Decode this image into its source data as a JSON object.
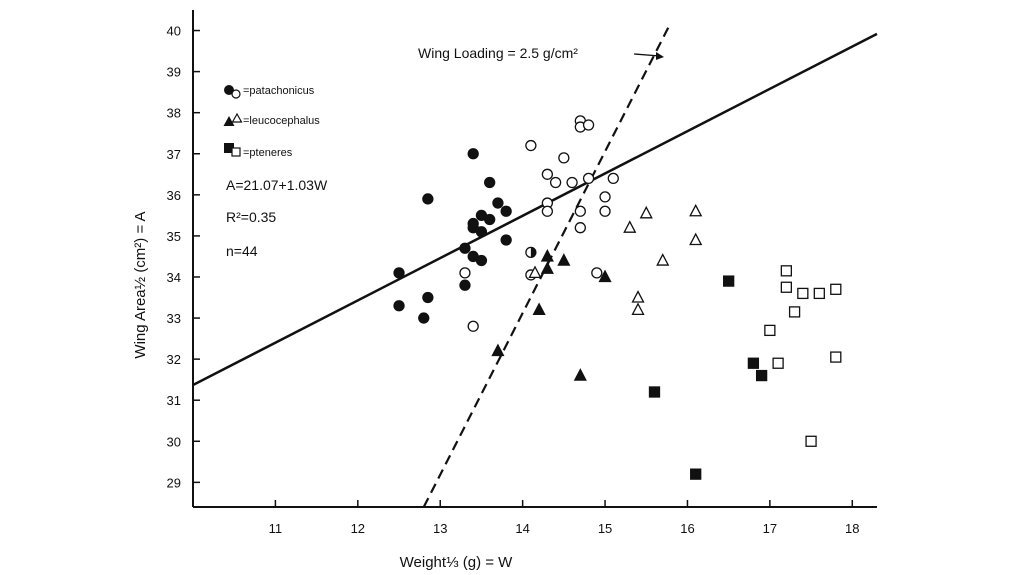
{
  "chart_data": {
    "type": "scatter",
    "xlabel": "Weight⅓ (g) = W",
    "ylabel": "Wing Area½ (cm²) = A",
    "xlim": [
      10,
      18.3
    ],
    "ylim": [
      28.4,
      40.5
    ],
    "xticks": [
      "11",
      "12",
      "13",
      "14",
      "15",
      "16",
      "17",
      "18"
    ],
    "yticks": [
      "29",
      "30",
      "31",
      "32",
      "33",
      "34",
      "35",
      "36",
      "37",
      "38",
      "39",
      "40"
    ],
    "legend": [
      {
        "key": "patachonicus",
        "symbol": "circle",
        "label": "=patachonicus"
      },
      {
        "key": "leucocephalus",
        "symbol": "triangle",
        "label": "=leucocephalus"
      },
      {
        "key": "pteneres",
        "symbol": "square",
        "label": "=pteneres"
      }
    ],
    "stats": {
      "equation": "A=21.07+1.03W",
      "r2": "R²=0.35",
      "n": "n=44"
    },
    "regression_line": {
      "intercept": 21.07,
      "slope": 1.03
    },
    "wing_loading_line": {
      "label": "Wing Loading = 2.5 g/cm²",
      "points": [
        [
          12.8,
          28.4
        ],
        [
          15.8,
          40.2
        ]
      ]
    },
    "series": [
      {
        "name": "patachonicus",
        "shape": "circle",
        "filled": [
          [
            12.5,
            34.1
          ],
          [
            12.5,
            33.3
          ],
          [
            12.8,
            33.0
          ],
          [
            12.85,
            33.5
          ],
          [
            12.85,
            35.9
          ],
          [
            13.3,
            34.7
          ],
          [
            13.3,
            33.8
          ],
          [
            13.4,
            34.5
          ],
          [
            13.4,
            35.2
          ],
          [
            13.4,
            35.3
          ],
          [
            13.4,
            37.0
          ],
          [
            13.5,
            35.1
          ],
          [
            13.5,
            35.5
          ],
          [
            13.5,
            34.4
          ],
          [
            13.6,
            35.4
          ],
          [
            13.6,
            36.3
          ],
          [
            13.7,
            35.8
          ],
          [
            13.8,
            35.6
          ],
          [
            13.8,
            34.9
          ]
        ],
        "open": [
          [
            13.3,
            34.1
          ],
          [
            13.4,
            32.8
          ],
          [
            14.1,
            37.2
          ],
          [
            14.3,
            36.5
          ],
          [
            14.3,
            35.8
          ],
          [
            14.3,
            35.6
          ],
          [
            14.4,
            36.3
          ],
          [
            14.5,
            36.9
          ],
          [
            14.6,
            36.3
          ],
          [
            14.7,
            37.8
          ],
          [
            14.7,
            37.65
          ],
          [
            14.7,
            35.2
          ],
          [
            14.7,
            35.6
          ],
          [
            14.8,
            37.7
          ],
          [
            14.8,
            36.4
          ],
          [
            14.9,
            34.1
          ],
          [
            15.0,
            35.6
          ],
          [
            15.0,
            35.95
          ],
          [
            15.1,
            36.4
          ],
          [
            14.1,
            34.05
          ]
        ],
        "half": [
          [
            14.1,
            34.6
          ]
        ]
      },
      {
        "name": "leucocephalus",
        "shape": "triangle",
        "filled": [
          [
            13.7,
            32.2
          ],
          [
            14.2,
            33.2
          ],
          [
            14.3,
            34.5
          ],
          [
            14.3,
            34.2
          ],
          [
            14.5,
            34.4
          ],
          [
            14.7,
            31.6
          ],
          [
            15.0,
            34.0
          ]
        ],
        "open": [
          [
            14.15,
            34.1
          ],
          [
            15.3,
            35.2
          ],
          [
            15.4,
            33.5
          ],
          [
            15.4,
            33.2
          ],
          [
            15.5,
            35.55
          ],
          [
            15.7,
            34.4
          ],
          [
            16.1,
            35.6
          ],
          [
            16.1,
            34.9
          ]
        ],
        "half": []
      },
      {
        "name": "pteneres",
        "shape": "square",
        "filled": [
          [
            15.6,
            31.2
          ],
          [
            16.1,
            29.2
          ],
          [
            16.5,
            33.9
          ],
          [
            16.8,
            31.9
          ],
          [
            16.9,
            31.6
          ]
        ],
        "open": [
          [
            17.0,
            32.7
          ],
          [
            17.1,
            31.9
          ],
          [
            17.2,
            34.15
          ],
          [
            17.2,
            33.75
          ],
          [
            17.3,
            33.15
          ],
          [
            17.4,
            33.6
          ],
          [
            17.5,
            30.0
          ],
          [
            17.6,
            33.6
          ],
          [
            17.8,
            33.7
          ],
          [
            17.8,
            32.05
          ]
        ],
        "half": []
      }
    ]
  }
}
